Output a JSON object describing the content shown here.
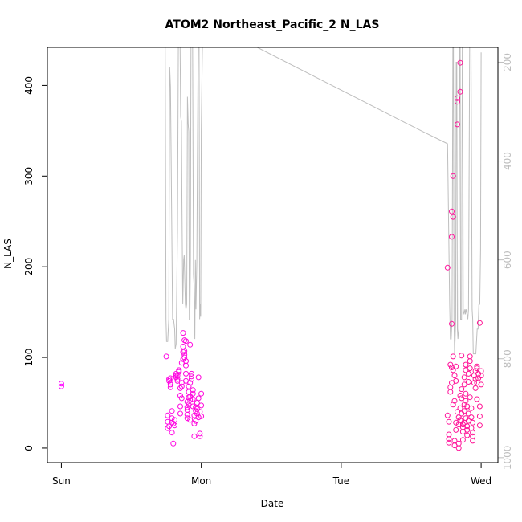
{
  "chart_data": {
    "type": "scatter",
    "title": "ATOM2 Northeast_Pacific_2 N_LAS",
    "xlabel": "Date",
    "ylabel": "N_LAS",
    "x_tick_labels": [
      "Sun",
      "Mon",
      "Tue",
      "Wed"
    ],
    "y_ticks": [
      0,
      100,
      200,
      300,
      400
    ],
    "y_right_ticks": [
      200,
      400,
      600,
      800,
      1000
    ],
    "xlim": [
      -0.1,
      3.12
    ],
    "ylim": [
      -16,
      442
    ],
    "y_right_lim": [
      1010,
      170
    ],
    "y_right_reversed": true,
    "colors": {
      "points_start": "#ff00ff",
      "points_end": "#ff1493",
      "depth_line": "#bebebe"
    },
    "series": [
      {
        "type": "scatter",
        "points": [
          [
            0.0,
            68
          ],
          [
            0.0,
            71
          ],
          [
            0.75,
            101
          ],
          [
            0.76,
            36
          ],
          [
            0.76,
            29
          ],
          [
            0.76,
            22
          ],
          [
            0.77,
            24
          ],
          [
            0.77,
            76
          ],
          [
            0.77,
            74
          ],
          [
            0.78,
            77
          ],
          [
            0.78,
            72
          ],
          [
            0.78,
            70
          ],
          [
            0.78,
            67
          ],
          [
            0.79,
            41
          ],
          [
            0.79,
            33
          ],
          [
            0.79,
            28
          ],
          [
            0.79,
            17
          ],
          [
            0.8,
            5
          ],
          [
            0.8,
            27
          ],
          [
            0.81,
            31
          ],
          [
            0.81,
            25
          ],
          [
            0.82,
            78
          ],
          [
            0.82,
            80
          ],
          [
            0.82,
            82
          ],
          [
            0.83,
            76
          ],
          [
            0.83,
            74
          ],
          [
            0.83,
            80
          ],
          [
            0.84,
            86
          ],
          [
            0.84,
            84
          ],
          [
            0.85,
            66
          ],
          [
            0.85,
            58
          ],
          [
            0.85,
            38
          ],
          [
            0.85,
            46
          ],
          [
            0.86,
            55
          ],
          [
            0.86,
            68
          ],
          [
            0.86,
            72
          ],
          [
            0.86,
            94
          ],
          [
            0.87,
            98
          ],
          [
            0.87,
            106
          ],
          [
            0.87,
            112
          ],
          [
            0.87,
            127
          ],
          [
            0.88,
            119
          ],
          [
            0.88,
            103
          ],
          [
            0.88,
            100
          ],
          [
            0.88,
            107
          ],
          [
            0.89,
            118
          ],
          [
            0.89,
            96
          ],
          [
            0.89,
            91
          ],
          [
            0.89,
            82
          ],
          [
            0.89,
            74
          ],
          [
            0.9,
            51
          ],
          [
            0.9,
            45
          ],
          [
            0.9,
            42
          ],
          [
            0.9,
            37
          ],
          [
            0.9,
            33
          ],
          [
            0.91,
            68
          ],
          [
            0.91,
            62
          ],
          [
            0.91,
            56
          ],
          [
            0.91,
            48
          ],
          [
            0.92,
            31
          ],
          [
            0.92,
            53
          ],
          [
            0.92,
            57
          ],
          [
            0.92,
            72
          ],
          [
            0.92,
            114
          ],
          [
            0.93,
            79
          ],
          [
            0.93,
            82
          ],
          [
            0.93,
            76
          ],
          [
            0.94,
            64
          ],
          [
            0.94,
            60
          ],
          [
            0.94,
            54
          ],
          [
            0.94,
            46
          ],
          [
            0.95,
            13
          ],
          [
            0.95,
            27
          ],
          [
            0.95,
            36
          ],
          [
            0.96,
            41
          ],
          [
            0.96,
            45
          ],
          [
            0.96,
            30
          ],
          [
            0.97,
            50
          ],
          [
            0.97,
            43
          ],
          [
            0.97,
            38
          ],
          [
            0.98,
            55
          ],
          [
            0.98,
            34
          ],
          [
            0.98,
            78
          ],
          [
            0.99,
            16
          ],
          [
            0.99,
            13
          ],
          [
            0.99,
            40
          ],
          [
            1.0,
            47
          ],
          [
            1.0,
            60
          ],
          [
            1.0,
            35
          ],
          [
            2.76,
            199
          ],
          [
            2.76,
            36
          ],
          [
            2.77,
            29
          ],
          [
            2.77,
            15
          ],
          [
            2.77,
            10
          ],
          [
            2.77,
            6
          ],
          [
            2.78,
            92
          ],
          [
            2.78,
            67
          ],
          [
            2.78,
            62
          ],
          [
            2.79,
            233
          ],
          [
            2.79,
            261
          ],
          [
            2.79,
            137
          ],
          [
            2.79,
            89
          ],
          [
            2.79,
            72
          ],
          [
            2.8,
            255
          ],
          [
            2.8,
            300
          ],
          [
            2.8,
            101
          ],
          [
            2.8,
            86
          ],
          [
            2.8,
            48
          ],
          [
            2.81,
            52
          ],
          [
            2.81,
            3
          ],
          [
            2.81,
            8
          ],
          [
            2.81,
            80
          ],
          [
            2.82,
            74
          ],
          [
            2.82,
            90
          ],
          [
            2.82,
            28
          ],
          [
            2.82,
            20
          ],
          [
            2.83,
            357
          ],
          [
            2.83,
            382
          ],
          [
            2.83,
            386
          ],
          [
            2.83,
            40
          ],
          [
            2.84,
            34
          ],
          [
            2.84,
            26
          ],
          [
            2.84,
            5
          ],
          [
            2.84,
            0
          ],
          [
            2.85,
            425
          ],
          [
            2.85,
            393
          ],
          [
            2.85,
            58
          ],
          [
            2.85,
            44
          ],
          [
            2.85,
            31
          ],
          [
            2.86,
            102
          ],
          [
            2.86,
            65
          ],
          [
            2.86,
            55
          ],
          [
            2.86,
            38
          ],
          [
            2.86,
            30
          ],
          [
            2.87,
            26
          ],
          [
            2.87,
            23
          ],
          [
            2.87,
            9
          ],
          [
            2.87,
            18
          ],
          [
            2.88,
            28
          ],
          [
            2.88,
            78
          ],
          [
            2.88,
            70
          ],
          [
            2.88,
            48
          ],
          [
            2.88,
            41
          ],
          [
            2.89,
            92
          ],
          [
            2.89,
            86
          ],
          [
            2.89,
            60
          ],
          [
            2.89,
            52
          ],
          [
            2.89,
            33
          ],
          [
            2.9,
            24
          ],
          [
            2.9,
            20
          ],
          [
            2.9,
            14
          ],
          [
            2.9,
            46
          ],
          [
            2.91,
            38
          ],
          [
            2.91,
            30
          ],
          [
            2.91,
            82
          ],
          [
            2.91,
            73
          ],
          [
            2.92,
            101
          ],
          [
            2.92,
            96
          ],
          [
            2.92,
            88
          ],
          [
            2.92,
            56
          ],
          [
            2.93,
            44
          ],
          [
            2.93,
            34
          ],
          [
            2.93,
            22
          ],
          [
            2.94,
            17
          ],
          [
            2.94,
            13
          ],
          [
            2.94,
            8
          ],
          [
            2.94,
            28
          ],
          [
            2.95,
            72
          ],
          [
            2.95,
            80
          ],
          [
            2.96,
            76
          ],
          [
            2.96,
            85
          ],
          [
            2.96,
            66
          ],
          [
            2.97,
            88
          ],
          [
            2.97,
            90
          ],
          [
            2.97,
            72
          ],
          [
            2.97,
            54
          ],
          [
            2.98,
            82
          ],
          [
            2.98,
            77
          ],
          [
            2.99,
            46
          ],
          [
            2.99,
            25
          ],
          [
            2.99,
            35
          ],
          [
            2.99,
            138
          ],
          [
            3.0,
            70
          ],
          [
            3.0,
            80
          ],
          [
            3.0,
            85
          ]
        ]
      },
      {
        "type": "line",
        "name": "depth",
        "axis": "right",
        "points": [
          [
            0.742,
            170
          ],
          [
            0.748,
            720
          ],
          [
            0.752,
            765
          ],
          [
            0.76,
            765
          ],
          [
            0.768,
            720
          ],
          [
            0.774,
            210
          ],
          [
            0.78,
            250
          ],
          [
            0.788,
            500
          ],
          [
            0.795,
            720
          ],
          [
            0.802,
            720
          ],
          [
            0.81,
            740
          ],
          [
            0.814,
            780
          ],
          [
            0.82,
            770
          ],
          [
            0.83,
            540
          ],
          [
            0.836,
            160
          ],
          [
            0.842,
            160
          ],
          [
            0.848,
            160
          ],
          [
            0.853,
            310
          ],
          [
            0.858,
            320
          ],
          [
            0.862,
            490
          ],
          [
            0.868,
            690
          ],
          [
            0.874,
            600
          ],
          [
            0.878,
            590
          ],
          [
            0.882,
            640
          ],
          [
            0.886,
            690
          ],
          [
            0.89,
            700
          ],
          [
            0.896,
            690
          ],
          [
            0.901,
            270
          ],
          [
            0.906,
            325
          ],
          [
            0.91,
            340
          ],
          [
            0.914,
            720
          ],
          [
            0.918,
            720
          ],
          [
            0.922,
            600
          ],
          [
            0.926,
            160
          ],
          [
            0.932,
            160
          ],
          [
            0.938,
            160
          ],
          [
            0.944,
            630
          ],
          [
            0.948,
            650
          ],
          [
            0.954,
            760
          ],
          [
            0.958,
            600
          ],
          [
            0.962,
            700
          ],
          [
            0.968,
            600
          ],
          [
            0.972,
            400
          ],
          [
            0.978,
            160
          ],
          [
            0.98,
            170
          ],
          [
            0.984,
            170
          ],
          [
            0.988,
            720
          ],
          [
            0.993,
            690
          ],
          [
            0.996,
            715
          ],
          [
            1.0,
            340
          ],
          [
            1.008,
            170
          ],
          [
            1.1,
            160
          ],
          [
            1.4,
            170
          ],
          [
            2.58,
            340
          ],
          [
            2.76,
            365
          ],
          [
            2.775,
            690
          ],
          [
            2.78,
            760
          ],
          [
            2.786,
            760
          ],
          [
            2.792,
            720
          ],
          [
            2.798,
            170
          ],
          [
            2.802,
            170
          ],
          [
            2.806,
            720
          ],
          [
            2.81,
            790
          ],
          [
            2.814,
            760
          ],
          [
            2.818,
            720
          ],
          [
            2.822,
            200
          ],
          [
            2.826,
            200
          ],
          [
            2.83,
            740
          ],
          [
            2.834,
            760
          ],
          [
            2.84,
            740
          ],
          [
            2.846,
            150
          ],
          [
            2.85,
            150
          ],
          [
            2.853,
            720
          ],
          [
            2.857,
            720
          ],
          [
            2.86,
            720
          ],
          [
            2.866,
            130
          ],
          [
            2.868,
            130
          ],
          [
            2.872,
            700
          ],
          [
            2.878,
            710
          ],
          [
            2.884,
            700
          ],
          [
            2.888,
            710
          ],
          [
            2.892,
            700
          ],
          [
            2.9,
            710
          ],
          [
            2.905,
            720
          ],
          [
            2.91,
            700
          ],
          [
            2.918,
            170
          ],
          [
            2.928,
            170
          ],
          [
            2.936,
            700
          ],
          [
            2.94,
            720
          ],
          [
            2.944,
            790
          ],
          [
            2.95,
            790
          ],
          [
            2.962,
            790
          ],
          [
            2.972,
            740
          ],
          [
            2.978,
            740
          ],
          [
            2.984,
            690
          ],
          [
            2.99,
            690
          ],
          [
            2.996,
            580
          ],
          [
            3.0,
            180
          ]
        ]
      }
    ]
  }
}
